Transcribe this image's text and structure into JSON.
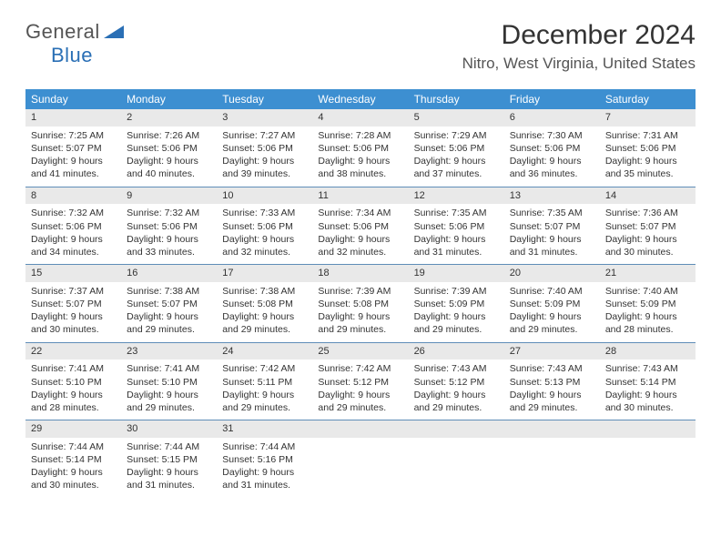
{
  "logo": {
    "text1": "General",
    "text2": "Blue"
  },
  "title": "December 2024",
  "location": "Nitro, West Virginia, United States",
  "colors": {
    "header_bg": "#3d8fd1",
    "header_text": "#ffffff",
    "num_bg": "#e9e9e9",
    "week_border": "#5f8db8",
    "logo_blue": "#2a6fb5",
    "text": "#333333"
  },
  "day_names": [
    "Sunday",
    "Monday",
    "Tuesday",
    "Wednesday",
    "Thursday",
    "Friday",
    "Saturday"
  ],
  "weeks": [
    [
      {
        "n": "1",
        "sr": "Sunrise: 7:25 AM",
        "ss": "Sunset: 5:07 PM",
        "d1": "Daylight: 9 hours",
        "d2": "and 41 minutes."
      },
      {
        "n": "2",
        "sr": "Sunrise: 7:26 AM",
        "ss": "Sunset: 5:06 PM",
        "d1": "Daylight: 9 hours",
        "d2": "and 40 minutes."
      },
      {
        "n": "3",
        "sr": "Sunrise: 7:27 AM",
        "ss": "Sunset: 5:06 PM",
        "d1": "Daylight: 9 hours",
        "d2": "and 39 minutes."
      },
      {
        "n": "4",
        "sr": "Sunrise: 7:28 AM",
        "ss": "Sunset: 5:06 PM",
        "d1": "Daylight: 9 hours",
        "d2": "and 38 minutes."
      },
      {
        "n": "5",
        "sr": "Sunrise: 7:29 AM",
        "ss": "Sunset: 5:06 PM",
        "d1": "Daylight: 9 hours",
        "d2": "and 37 minutes."
      },
      {
        "n": "6",
        "sr": "Sunrise: 7:30 AM",
        "ss": "Sunset: 5:06 PM",
        "d1": "Daylight: 9 hours",
        "d2": "and 36 minutes."
      },
      {
        "n": "7",
        "sr": "Sunrise: 7:31 AM",
        "ss": "Sunset: 5:06 PM",
        "d1": "Daylight: 9 hours",
        "d2": "and 35 minutes."
      }
    ],
    [
      {
        "n": "8",
        "sr": "Sunrise: 7:32 AM",
        "ss": "Sunset: 5:06 PM",
        "d1": "Daylight: 9 hours",
        "d2": "and 34 minutes."
      },
      {
        "n": "9",
        "sr": "Sunrise: 7:32 AM",
        "ss": "Sunset: 5:06 PM",
        "d1": "Daylight: 9 hours",
        "d2": "and 33 minutes."
      },
      {
        "n": "10",
        "sr": "Sunrise: 7:33 AM",
        "ss": "Sunset: 5:06 PM",
        "d1": "Daylight: 9 hours",
        "d2": "and 32 minutes."
      },
      {
        "n": "11",
        "sr": "Sunrise: 7:34 AM",
        "ss": "Sunset: 5:06 PM",
        "d1": "Daylight: 9 hours",
        "d2": "and 32 minutes."
      },
      {
        "n": "12",
        "sr": "Sunrise: 7:35 AM",
        "ss": "Sunset: 5:06 PM",
        "d1": "Daylight: 9 hours",
        "d2": "and 31 minutes."
      },
      {
        "n": "13",
        "sr": "Sunrise: 7:35 AM",
        "ss": "Sunset: 5:07 PM",
        "d1": "Daylight: 9 hours",
        "d2": "and 31 minutes."
      },
      {
        "n": "14",
        "sr": "Sunrise: 7:36 AM",
        "ss": "Sunset: 5:07 PM",
        "d1": "Daylight: 9 hours",
        "d2": "and 30 minutes."
      }
    ],
    [
      {
        "n": "15",
        "sr": "Sunrise: 7:37 AM",
        "ss": "Sunset: 5:07 PM",
        "d1": "Daylight: 9 hours",
        "d2": "and 30 minutes."
      },
      {
        "n": "16",
        "sr": "Sunrise: 7:38 AM",
        "ss": "Sunset: 5:07 PM",
        "d1": "Daylight: 9 hours",
        "d2": "and 29 minutes."
      },
      {
        "n": "17",
        "sr": "Sunrise: 7:38 AM",
        "ss": "Sunset: 5:08 PM",
        "d1": "Daylight: 9 hours",
        "d2": "and 29 minutes."
      },
      {
        "n": "18",
        "sr": "Sunrise: 7:39 AM",
        "ss": "Sunset: 5:08 PM",
        "d1": "Daylight: 9 hours",
        "d2": "and 29 minutes."
      },
      {
        "n": "19",
        "sr": "Sunrise: 7:39 AM",
        "ss": "Sunset: 5:09 PM",
        "d1": "Daylight: 9 hours",
        "d2": "and 29 minutes."
      },
      {
        "n": "20",
        "sr": "Sunrise: 7:40 AM",
        "ss": "Sunset: 5:09 PM",
        "d1": "Daylight: 9 hours",
        "d2": "and 29 minutes."
      },
      {
        "n": "21",
        "sr": "Sunrise: 7:40 AM",
        "ss": "Sunset: 5:09 PM",
        "d1": "Daylight: 9 hours",
        "d2": "and 28 minutes."
      }
    ],
    [
      {
        "n": "22",
        "sr": "Sunrise: 7:41 AM",
        "ss": "Sunset: 5:10 PM",
        "d1": "Daylight: 9 hours",
        "d2": "and 28 minutes."
      },
      {
        "n": "23",
        "sr": "Sunrise: 7:41 AM",
        "ss": "Sunset: 5:10 PM",
        "d1": "Daylight: 9 hours",
        "d2": "and 29 minutes."
      },
      {
        "n": "24",
        "sr": "Sunrise: 7:42 AM",
        "ss": "Sunset: 5:11 PM",
        "d1": "Daylight: 9 hours",
        "d2": "and 29 minutes."
      },
      {
        "n": "25",
        "sr": "Sunrise: 7:42 AM",
        "ss": "Sunset: 5:12 PM",
        "d1": "Daylight: 9 hours",
        "d2": "and 29 minutes."
      },
      {
        "n": "26",
        "sr": "Sunrise: 7:43 AM",
        "ss": "Sunset: 5:12 PM",
        "d1": "Daylight: 9 hours",
        "d2": "and 29 minutes."
      },
      {
        "n": "27",
        "sr": "Sunrise: 7:43 AM",
        "ss": "Sunset: 5:13 PM",
        "d1": "Daylight: 9 hours",
        "d2": "and 29 minutes."
      },
      {
        "n": "28",
        "sr": "Sunrise: 7:43 AM",
        "ss": "Sunset: 5:14 PM",
        "d1": "Daylight: 9 hours",
        "d2": "and 30 minutes."
      }
    ],
    [
      {
        "n": "29",
        "sr": "Sunrise: 7:44 AM",
        "ss": "Sunset: 5:14 PM",
        "d1": "Daylight: 9 hours",
        "d2": "and 30 minutes."
      },
      {
        "n": "30",
        "sr": "Sunrise: 7:44 AM",
        "ss": "Sunset: 5:15 PM",
        "d1": "Daylight: 9 hours",
        "d2": "and 31 minutes."
      },
      {
        "n": "31",
        "sr": "Sunrise: 7:44 AM",
        "ss": "Sunset: 5:16 PM",
        "d1": "Daylight: 9 hours",
        "d2": "and 31 minutes."
      },
      {
        "n": "",
        "sr": "",
        "ss": "",
        "d1": "",
        "d2": "",
        "empty": true
      },
      {
        "n": "",
        "sr": "",
        "ss": "",
        "d1": "",
        "d2": "",
        "empty": true
      },
      {
        "n": "",
        "sr": "",
        "ss": "",
        "d1": "",
        "d2": "",
        "empty": true
      },
      {
        "n": "",
        "sr": "",
        "ss": "",
        "d1": "",
        "d2": "",
        "empty": true
      }
    ]
  ]
}
